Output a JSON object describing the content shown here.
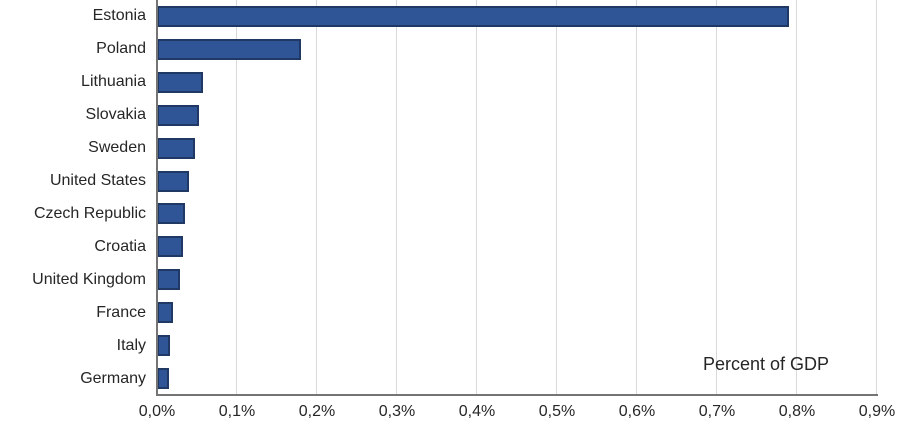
{
  "chart_data": {
    "type": "bar",
    "orientation": "horizontal",
    "annotation": "Percent of GDP",
    "categories": [
      "Estonia",
      "Poland",
      "Lithuania",
      "Slovakia",
      "Sweden",
      "United States",
      "Czech Republic",
      "Croatia",
      "United Kingdom",
      "France",
      "Italy",
      "Germany"
    ],
    "values": [
      0.79,
      0.18,
      0.057,
      0.052,
      0.047,
      0.04,
      0.035,
      0.033,
      0.029,
      0.02,
      0.016,
      0.015
    ],
    "ylabel": "",
    "xlabel": "",
    "x_axis": {
      "min": 0,
      "max": 0.9,
      "step": 0.1,
      "unit": "%",
      "tick_labels": [
        "0,0%",
        "0,1%",
        "0,2%",
        "0,3%",
        "0,4%",
        "0,5%",
        "0,6%",
        "0,7%",
        "0,8%",
        "0,9%"
      ]
    },
    "grid": true,
    "legend": false,
    "colors": {
      "bar_fill": "#2F5597",
      "bar_border": "#1F3864",
      "gridline": "#D9D9D9",
      "axis_line": "#747474",
      "text": "#262626"
    }
  }
}
